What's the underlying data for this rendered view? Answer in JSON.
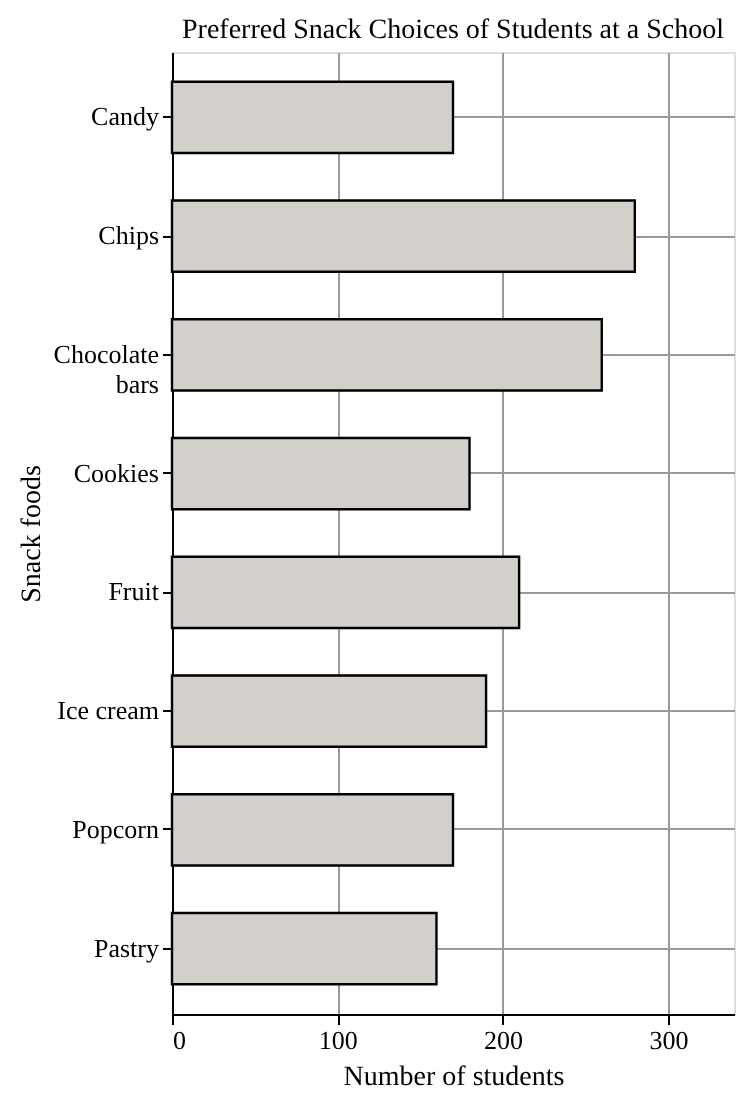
{
  "chart_data": {
    "type": "bar",
    "orientation": "horizontal",
    "title": "Preferred Snack Choices of Students at a School",
    "xlabel": "Number of students",
    "ylabel": "Snack foods",
    "categories": [
      "Candy",
      "Chips",
      "Chocolate bars",
      "Cookies",
      "Fruit",
      "Ice cream",
      "Popcorn",
      "Pastry"
    ],
    "values": [
      170,
      280,
      260,
      180,
      210,
      190,
      170,
      160
    ],
    "color": "#d3d0cc",
    "xlim": [
      0,
      340
    ],
    "xticks": [
      0,
      100,
      200,
      300
    ],
    "grid": true
  }
}
